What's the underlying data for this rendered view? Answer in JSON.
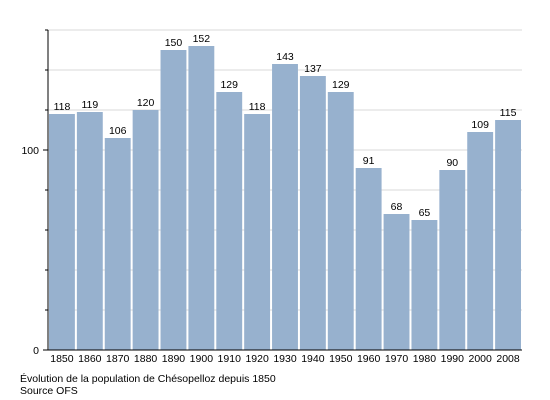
{
  "chart_data": {
    "type": "bar",
    "categories": [
      "1850",
      "1860",
      "1870",
      "1880",
      "1890",
      "1900",
      "1910",
      "1920",
      "1930",
      "1940",
      "1950",
      "1960",
      "1970",
      "1980",
      "1990",
      "2000",
      "2008"
    ],
    "values": [
      118,
      119,
      106,
      120,
      150,
      152,
      129,
      118,
      143,
      137,
      129,
      91,
      68,
      65,
      90,
      109,
      115
    ],
    "ylim": [
      0,
      160
    ],
    "yticks": [
      0,
      100
    ],
    "grid": true,
    "bar_color": "#97b1ce",
    "grid_color": "#d9d9d9",
    "title": "",
    "xlabel": "",
    "ylabel": ""
  },
  "caption": {
    "line1": "Évolution de la population de Chésopelloz depuis 1850",
    "line2": "Source OFS"
  }
}
